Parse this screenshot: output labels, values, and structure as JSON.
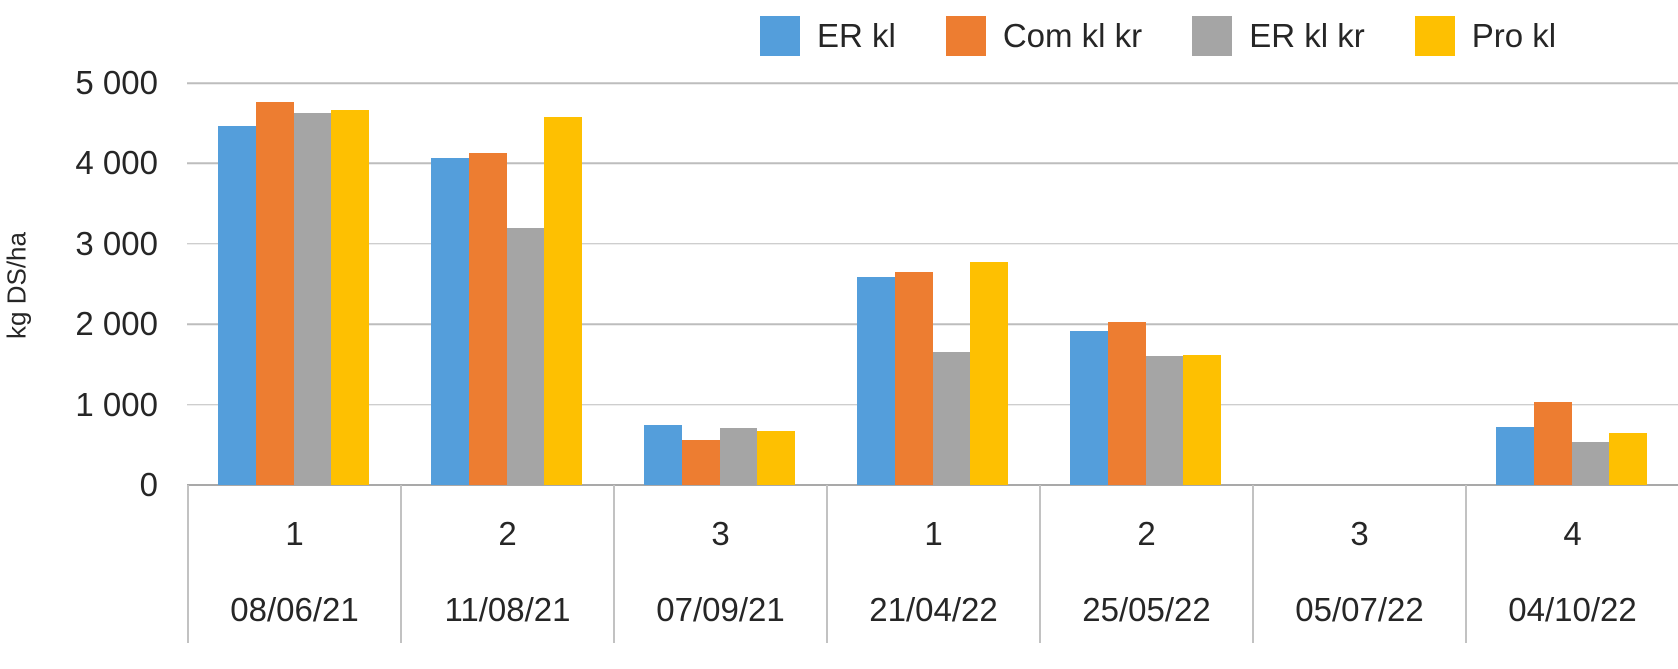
{
  "chart_data": {
    "type": "bar",
    "title": "",
    "xlabel": "",
    "ylabel": "kg DS/ha",
    "ylim": [
      0,
      5000
    ],
    "grid": true,
    "legend_position": "top-right",
    "yticks": [
      {
        "value": 5000,
        "label": "5 000"
      },
      {
        "value": 4000,
        "label": "4 000"
      },
      {
        "value": 3000,
        "label": "3 000"
      },
      {
        "value": 2000,
        "label": "2 000"
      },
      {
        "value": 1000,
        "label": "1 000"
      },
      {
        "value": 0,
        "label": "0"
      }
    ],
    "categories": [
      {
        "cut": "1",
        "date": "08/06/21"
      },
      {
        "cut": "2",
        "date": "11/08/21"
      },
      {
        "cut": "3",
        "date": "07/09/21"
      },
      {
        "cut": "1",
        "date": "21/04/22"
      },
      {
        "cut": "2",
        "date": "25/05/22"
      },
      {
        "cut": "3",
        "date": "05/07/22"
      },
      {
        "cut": "4",
        "date": "04/10/22"
      }
    ],
    "series": [
      {
        "name": "ER kl",
        "color": "#549EDB",
        "values": [
          4470,
          4070,
          750,
          2590,
          1920,
          0,
          720
        ]
      },
      {
        "name": "Com kl kr",
        "color": "#ED7D31",
        "values": [
          4760,
          4130,
          560,
          2650,
          2030,
          0,
          1030
        ]
      },
      {
        "name": "ER kl kr",
        "color": "#A5A5A5",
        "values": [
          4630,
          3200,
          710,
          1650,
          1610,
          0,
          540
        ]
      },
      {
        "name": "Pro kl",
        "color": "#FEC001",
        "values": [
          4670,
          4580,
          670,
          2780,
          1620,
          0,
          650
        ]
      }
    ]
  }
}
